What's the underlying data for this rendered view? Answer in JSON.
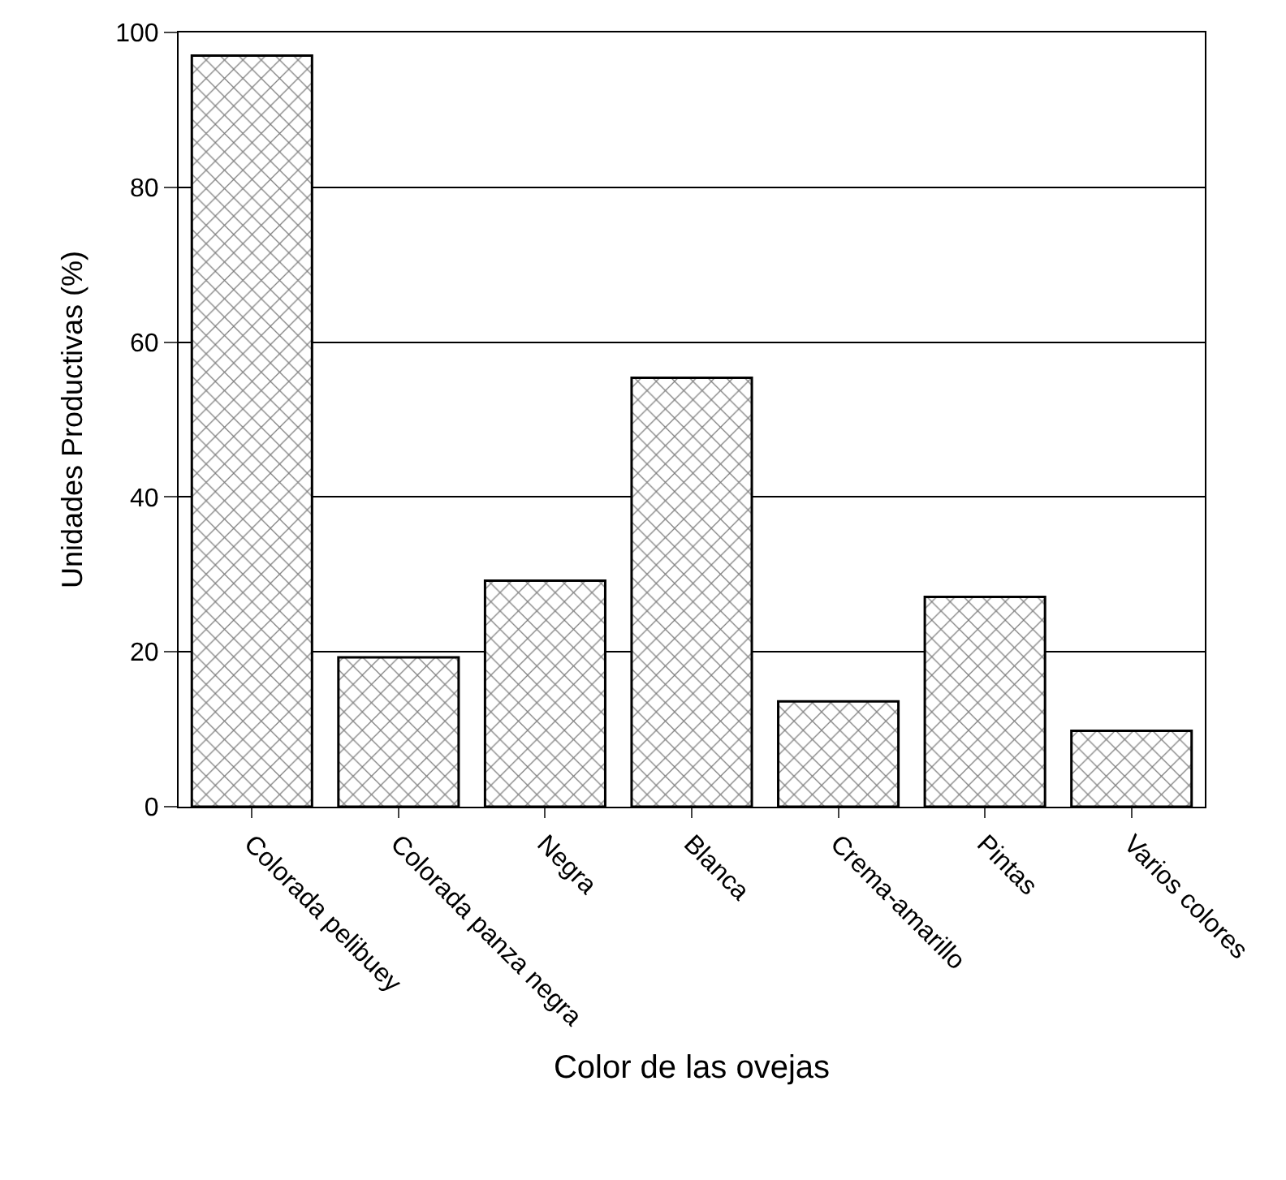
{
  "chart_data": {
    "type": "bar",
    "xlabel": "Color de las ovejas",
    "ylabel": "Unidades Productivas (%)",
    "categories": [
      "Colorada pelibuey",
      "Colorada panza negra",
      "Negra",
      "Blanca",
      "Crema-amarillo",
      "Pintas",
      "Varios colores"
    ],
    "values": [
      97,
      19.3,
      29.2,
      55.4,
      13.6,
      27.1,
      9.8
    ],
    "color": "#000000",
    "ylim": [
      0,
      100
    ],
    "yticks": [
      0,
      20,
      40,
      60,
      80,
      100
    ],
    "grid": "y",
    "legend": false
  }
}
